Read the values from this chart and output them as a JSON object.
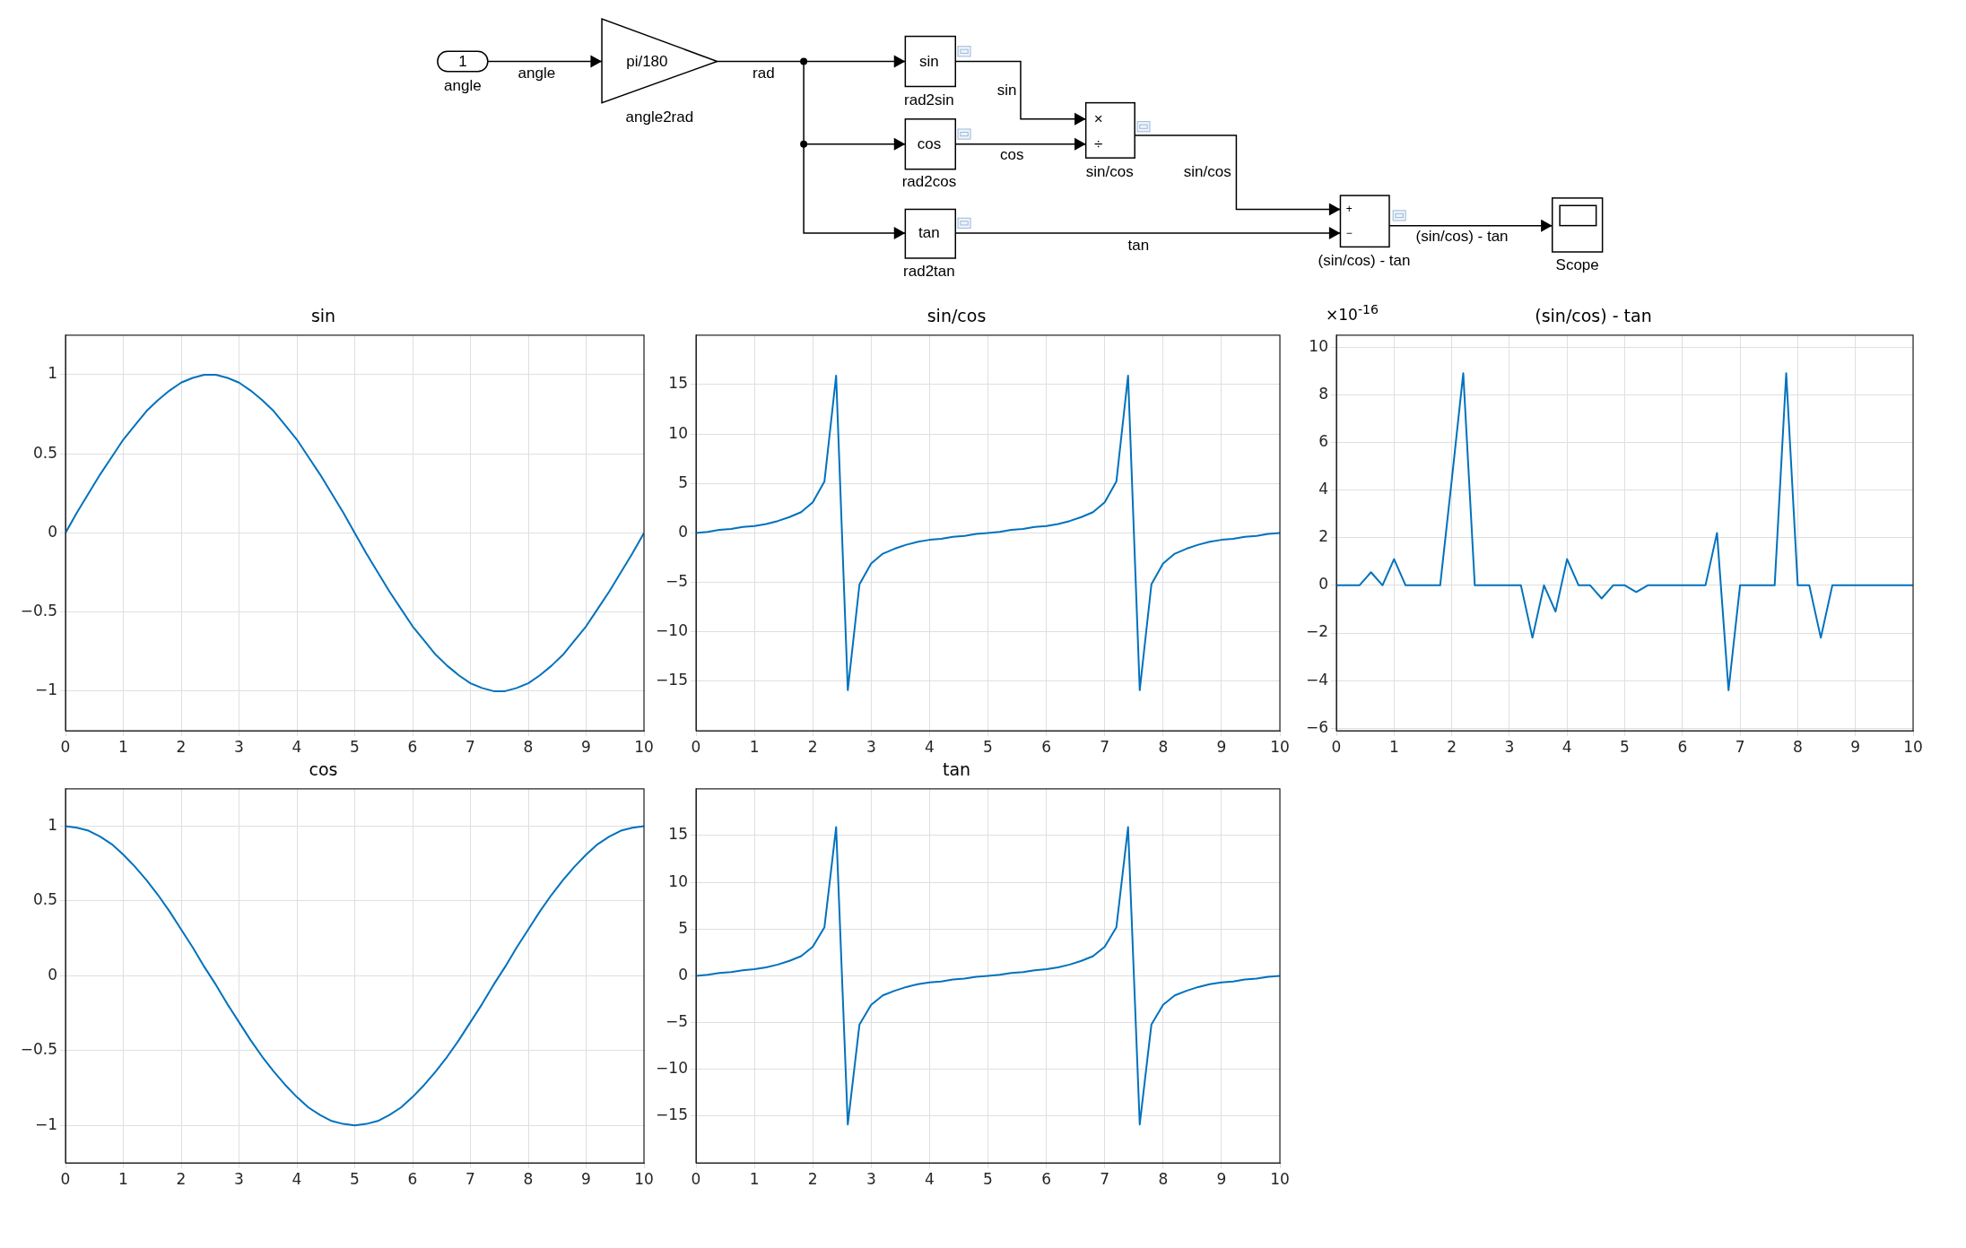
{
  "chart_data": [
    {
      "type": "other",
      "annotations": [
        "1",
        "angle",
        "angle",
        "pi/180",
        "angle2rad",
        "rad",
        "sin",
        "rad2sin",
        "sin",
        "cos",
        "rad2cos",
        "cos",
        "tan",
        "rad2tan",
        "tan",
        "×",
        "÷",
        "sin/cos",
        "sin/cos",
        "+",
        "−",
        "(sin/cos) - tan",
        "(sin/cos) - tan",
        "Scope"
      ]
    },
    {
      "type": "line",
      "title": "sin",
      "x": [
        0,
        0.2,
        0.4,
        0.6,
        0.8,
        1,
        1.2,
        1.4,
        1.6,
        1.8,
        2,
        2.2,
        2.4,
        2.6,
        2.8,
        3,
        3.2,
        3.4,
        3.6,
        3.8,
        4,
        4.2,
        4.4,
        4.6,
        4.8,
        5,
        5.2,
        5.4,
        5.6,
        5.8,
        6,
        6.2,
        6.4,
        6.6,
        6.8,
        7,
        7.2,
        7.4,
        7.6,
        7.8,
        8,
        8.2,
        8.4,
        8.6,
        8.8,
        9,
        9.2,
        9.4,
        9.6,
        9.8,
        10
      ],
      "series": [
        {
          "color": "#0072bd",
          "values": [
            0,
            0.13,
            0.25,
            0.37,
            0.48,
            0.59,
            0.68,
            0.77,
            0.84,
            0.9,
            0.95,
            0.98,
            1,
            1,
            0.98,
            0.95,
            0.9,
            0.84,
            0.77,
            0.68,
            0.59,
            0.48,
            0.37,
            0.25,
            0.13,
            0,
            -0.13,
            -0.25,
            -0.37,
            -0.48,
            -0.59,
            -0.68,
            -0.77,
            -0.84,
            -0.9,
            -0.95,
            -0.98,
            -1,
            -1,
            -0.98,
            -0.95,
            -0.9,
            -0.84,
            -0.77,
            -0.68,
            -0.59,
            -0.48,
            -0.37,
            -0.25,
            -0.13,
            0
          ]
        }
      ],
      "xlim": [
        0,
        10
      ],
      "xticks": [
        0,
        1,
        2,
        3,
        4,
        5,
        6,
        7,
        8,
        9,
        10
      ],
      "ylim": [
        -1.25,
        1.25
      ],
      "yticks": [
        -1,
        -0.5,
        0,
        0.5,
        1
      ],
      "grid": true,
      "marker": "none",
      "line_style": "solid"
    },
    {
      "type": "line",
      "title": "sin/cos",
      "x": [
        0,
        0.2,
        0.4,
        0.6,
        0.8,
        1,
        1.2,
        1.4,
        1.6,
        1.8,
        2,
        2.2,
        2.4,
        2.6,
        2.8,
        3,
        3.2,
        3.4,
        3.6,
        3.8,
        4,
        4.2,
        4.4,
        4.6,
        4.8,
        5,
        5.2,
        5.4,
        5.6,
        5.8,
        6,
        6.2,
        6.4,
        6.6,
        6.8,
        7,
        7.2,
        7.4,
        7.6,
        7.8,
        8,
        8.2,
        8.4,
        8.6,
        8.8,
        9,
        9.2,
        9.4,
        9.6,
        9.8,
        10
      ],
      "series": [
        {
          "color": "#0072bd",
          "values": [
            0,
            0.1,
            0.3,
            0.4,
            0.6,
            0.7,
            0.9,
            1.2,
            1.6,
            2.1,
            3.1,
            5.2,
            15.9,
            -15.9,
            -5.2,
            -3.1,
            -2.1,
            -1.6,
            -1.2,
            -0.9,
            -0.7,
            -0.6,
            -0.4,
            -0.3,
            -0.1,
            0,
            0.1,
            0.3,
            0.4,
            0.6,
            0.7,
            0.9,
            1.2,
            1.6,
            2.1,
            3.1,
            5.2,
            15.9,
            -15.9,
            -5.2,
            -3.1,
            -2.1,
            -1.6,
            -1.2,
            -0.9,
            -0.7,
            -0.6,
            -0.4,
            -0.3,
            -0.1,
            0
          ]
        }
      ],
      "xlim": [
        0,
        10
      ],
      "xticks": [
        0,
        1,
        2,
        3,
        4,
        5,
        6,
        7,
        8,
        9,
        10
      ],
      "ylim": [
        -20,
        20
      ],
      "yticks": [
        -15,
        -10,
        -5,
        0,
        5,
        10,
        15
      ],
      "grid": true,
      "marker": "none",
      "line_style": "solid"
    },
    {
      "type": "line",
      "title": "(sin/cos) - tan",
      "annotations": [
        "×10$^{-16}$"
      ],
      "x": [
        0,
        0.2,
        0.4,
        0.6,
        0.8,
        1,
        1.2,
        1.4,
        1.6,
        1.8,
        2,
        2.2,
        2.4,
        2.6,
        2.8,
        3,
        3.2,
        3.4,
        3.6,
        3.8,
        4,
        4.2,
        4.4,
        4.6,
        4.8,
        5,
        5.2,
        5.4,
        5.6,
        5.8,
        6,
        6.2,
        6.4,
        6.6,
        6.8,
        7,
        7.2,
        7.4,
        7.6,
        7.8,
        8,
        8.2,
        8.4,
        8.6,
        8.8,
        9,
        9.2,
        9.4,
        9.6,
        9.8,
        10
      ],
      "series": [
        {
          "color": "#0072bd",
          "values": [
            0,
            0,
            0,
            0.55,
            0,
            1.1,
            0,
            0,
            0,
            0,
            4.4,
            8.9,
            0,
            0,
            0,
            0,
            0,
            -2.2,
            0,
            -1.1,
            1.1,
            0,
            0,
            -0.55,
            0,
            0,
            -0.28,
            0,
            0,
            0,
            0,
            0,
            0,
            2.2,
            -4.4,
            0,
            0,
            0,
            0,
            8.9,
            0,
            0,
            -2.2,
            0,
            0,
            0,
            0,
            0,
            0,
            0,
            0
          ]
        }
      ],
      "xlim": [
        0,
        10
      ],
      "xticks": [
        0,
        1,
        2,
        3,
        4,
        5,
        6,
        7,
        8,
        9,
        10
      ],
      "ylim": [
        -6.1,
        10.5
      ],
      "yticks": [
        -6,
        -4,
        -2,
        0,
        2,
        4,
        6,
        8,
        10
      ],
      "grid": true,
      "marker": "none",
      "line_style": "solid"
    },
    {
      "type": "line",
      "title": "cos",
      "x": [
        0,
        0.2,
        0.4,
        0.6,
        0.8,
        1,
        1.2,
        1.4,
        1.6,
        1.8,
        2,
        2.2,
        2.4,
        2.6,
        2.8,
        3,
        3.2,
        3.4,
        3.6,
        3.8,
        4,
        4.2,
        4.4,
        4.6,
        4.8,
        5,
        5.2,
        5.4,
        5.6,
        5.8,
        6,
        6.2,
        6.4,
        6.6,
        6.8,
        7,
        7.2,
        7.4,
        7.6,
        7.8,
        8,
        8.2,
        8.4,
        8.6,
        8.8,
        9,
        9.2,
        9.4,
        9.6,
        9.8,
        10
      ],
      "series": [
        {
          "color": "#0072bd",
          "values": [
            1,
            0.99,
            0.97,
            0.93,
            0.88,
            0.81,
            0.73,
            0.64,
            0.54,
            0.43,
            0.31,
            0.19,
            0.06,
            -0.06,
            -0.19,
            -0.31,
            -0.43,
            -0.54,
            -0.64,
            -0.73,
            -0.81,
            -0.88,
            -0.93,
            -0.97,
            -0.99,
            -1,
            -0.99,
            -0.97,
            -0.93,
            -0.88,
            -0.81,
            -0.73,
            -0.64,
            -0.54,
            -0.43,
            -0.31,
            -0.19,
            -0.06,
            0.06,
            0.19,
            0.31,
            0.43,
            0.54,
            0.64,
            0.73,
            0.81,
            0.88,
            0.93,
            0.97,
            0.99,
            1
          ]
        }
      ],
      "xlim": [
        0,
        10
      ],
      "xticks": [
        0,
        1,
        2,
        3,
        4,
        5,
        6,
        7,
        8,
        9,
        10
      ],
      "ylim": [
        -1.25,
        1.25
      ],
      "yticks": [
        -1,
        -0.5,
        0,
        0.5,
        1
      ],
      "grid": true,
      "marker": "none",
      "line_style": "solid"
    },
    {
      "type": "line",
      "title": "tan",
      "x": [
        0,
        0.2,
        0.4,
        0.6,
        0.8,
        1,
        1.2,
        1.4,
        1.6,
        1.8,
        2,
        2.2,
        2.4,
        2.6,
        2.8,
        3,
        3.2,
        3.4,
        3.6,
        3.8,
        4,
        4.2,
        4.4,
        4.6,
        4.8,
        5,
        5.2,
        5.4,
        5.6,
        5.8,
        6,
        6.2,
        6.4,
        6.6,
        6.8,
        7,
        7.2,
        7.4,
        7.6,
        7.8,
        8,
        8.2,
        8.4,
        8.6,
        8.8,
        9,
        9.2,
        9.4,
        9.6,
        9.8,
        10
      ],
      "series": [
        {
          "color": "#0072bd",
          "values": [
            0,
            0.1,
            0.3,
            0.4,
            0.6,
            0.7,
            0.9,
            1.2,
            1.6,
            2.1,
            3.1,
            5.2,
            15.9,
            -15.9,
            -5.2,
            -3.1,
            -2.1,
            -1.6,
            -1.2,
            -0.9,
            -0.7,
            -0.6,
            -0.4,
            -0.3,
            -0.1,
            0,
            0.1,
            0.3,
            0.4,
            0.6,
            0.7,
            0.9,
            1.2,
            1.6,
            2.1,
            3.1,
            5.2,
            15.9,
            -15.9,
            -5.2,
            -3.1,
            -2.1,
            -1.6,
            -1.2,
            -0.9,
            -0.7,
            -0.6,
            -0.4,
            -0.3,
            -0.1,
            0
          ]
        }
      ],
      "xlim": [
        0,
        10
      ],
      "xticks": [
        0,
        1,
        2,
        3,
        4,
        5,
        6,
        7,
        8,
        9,
        10
      ],
      "ylim": [
        -20,
        20
      ],
      "yticks": [
        -15,
        -10,
        -5,
        0,
        5,
        10,
        15
      ],
      "grid": true,
      "marker": "none",
      "line_style": "solid"
    }
  ]
}
